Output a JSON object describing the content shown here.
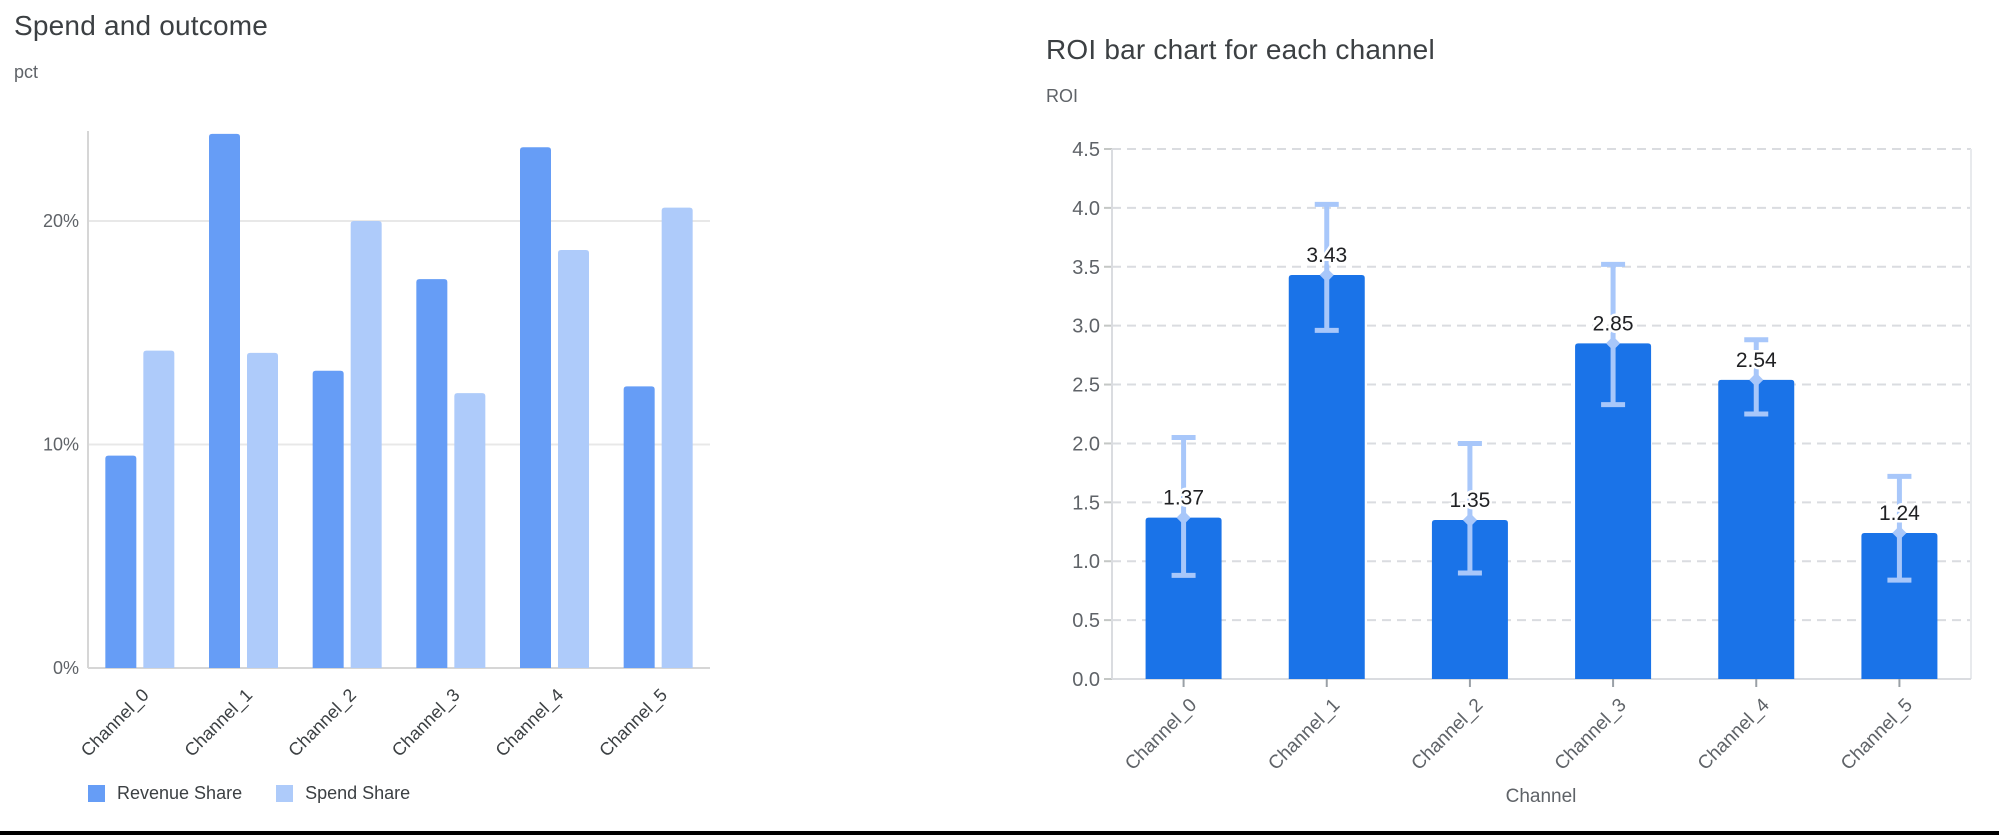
{
  "page": {
    "background": "#FFFFFF",
    "bottom_rule_color": "#000000"
  },
  "chart_data": [
    {
      "type": "bar",
      "title": "Spend and outcome",
      "ylabel": "pct",
      "xlabel": "",
      "categories": [
        "Channel_0",
        "Channel_1",
        "Channel_2",
        "Channel_3",
        "Channel_4",
        "Channel_5"
      ],
      "series": [
        {
          "name": "Revenue Share",
          "color": "#669DF6",
          "values": [
            9.5,
            23.9,
            13.3,
            17.4,
            23.3,
            12.6
          ]
        },
        {
          "name": "Spend Share",
          "color": "#AECBFA",
          "values": [
            14.2,
            14.1,
            20.0,
            12.3,
            18.7,
            20.6
          ]
        }
      ],
      "y_ticks": [
        {
          "label": "0%",
          "value": 0
        },
        {
          "label": "10%",
          "value": 10
        },
        {
          "label": "20%",
          "value": 20
        }
      ],
      "ylim": [
        0,
        23.98
      ],
      "grid": "solid",
      "legend_position": "bottom-left"
    },
    {
      "type": "bar",
      "title": "ROI bar chart for each channel",
      "ylabel": "ROI",
      "xlabel": "Channel",
      "categories": [
        "Channel_0",
        "Channel_1",
        "Channel_2",
        "Channel_3",
        "Channel_4",
        "Channel_5"
      ],
      "values": [
        1.37,
        3.43,
        1.35,
        2.85,
        2.54,
        1.24
      ],
      "value_labels": [
        "1.37",
        "3.43",
        "1.35",
        "2.85",
        "2.54",
        "1.24"
      ],
      "error_low": [
        0.88,
        2.96,
        0.9,
        2.33,
        2.25,
        0.84
      ],
      "error_high": [
        2.05,
        4.03,
        2.0,
        3.52,
        2.88,
        1.72
      ],
      "bar_color": "#1A73E8",
      "error_color": "#A8C7FA",
      "y_ticks": [
        {
          "label": "0.0",
          "value": 0.0
        },
        {
          "label": "0.5",
          "value": 0.5
        },
        {
          "label": "1.0",
          "value": 1.0
        },
        {
          "label": "1.5",
          "value": 1.5
        },
        {
          "label": "2.0",
          "value": 2.0
        },
        {
          "label": "2.5",
          "value": 2.5
        },
        {
          "label": "3.0",
          "value": 3.0
        },
        {
          "label": "3.5",
          "value": 3.5
        },
        {
          "label": "4.0",
          "value": 4.0
        },
        {
          "label": "4.5",
          "value": 4.5
        }
      ],
      "ylim": [
        0,
        4.5
      ],
      "grid": "dashed",
      "legend_position": "none"
    }
  ]
}
